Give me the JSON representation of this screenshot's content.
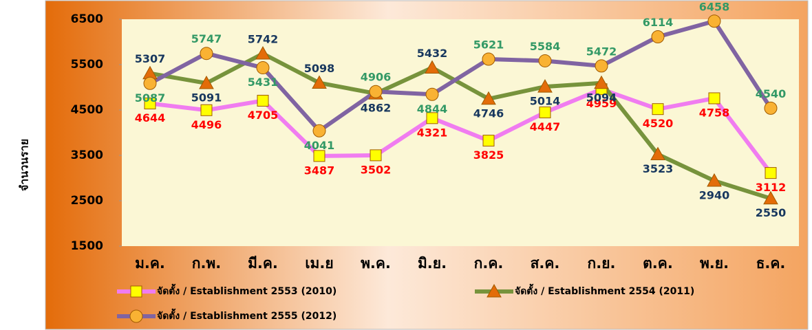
{
  "chart_data": {
    "type": "line",
    "y_label": "จำนวนราย",
    "categories": [
      "ม.ค.",
      "ก.พ.",
      "มี.ค.",
      "เม.ย",
      "พ.ค.",
      "มิ.ย.",
      "ก.ค.",
      "ส.ค.",
      "ก.ย.",
      "ต.ค.",
      "พ.ย.",
      "ธ.ค."
    ],
    "series": [
      {
        "name": "จัดตั้ง / Establishment 2553 (2010)",
        "color": "#f07cf0",
        "marker": "square",
        "marker_color": "#ffff00",
        "label_color": "#ff0000",
        "values": [
          4644,
          4496,
          4705,
          3487,
          3502,
          4321,
          3825,
          4447,
          4959,
          4520,
          4758,
          3112
        ]
      },
      {
        "name": "จัดตั้ง / Establishment 2554 (2011)",
        "color": "#77933c",
        "marker": "triangle",
        "marker_color": "#e36c09",
        "label_color": "#17375e",
        "values": [
          5307,
          5091,
          5742,
          5098,
          4862,
          5432,
          4746,
          5014,
          5094,
          3523,
          2940,
          2550
        ]
      },
      {
        "name": "จัดตั้ง / Establishment 2555 (2012)",
        "color": "#8064a2",
        "marker": "circle",
        "marker_color": "#f9b233",
        "label_color": "#339966",
        "values": [
          5087,
          5747,
          5431,
          4041,
          4906,
          4844,
          5621,
          5584,
          5472,
          6114,
          6458,
          4540
        ]
      }
    ],
    "ylim": [
      1500,
      6500
    ],
    "yticks": [
      1500,
      2500,
      3500,
      4500,
      5500,
      6500
    ],
    "grid": false
  }
}
